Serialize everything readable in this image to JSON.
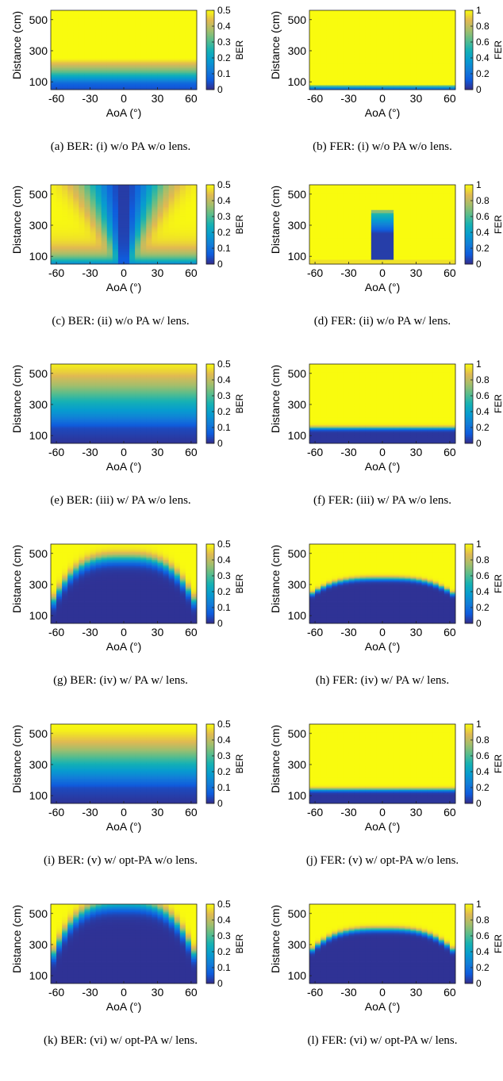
{
  "figure": {
    "xlabel": "AoA (°)",
    "ylabel": "Distance (cm)",
    "x_ticks": [
      -60,
      -30,
      0,
      30,
      60
    ],
    "y_ticks": [
      100,
      300,
      500
    ]
  },
  "chart_data": [
    {
      "id": "a",
      "type": "heatmap",
      "caption": "(a)  BER: (i) w/o PA w/o lens.",
      "metric": "BER",
      "colorbar_label": "BER",
      "clim": [
        0,
        0.5
      ],
      "colorbar_ticks": [
        0,
        0.1,
        0.2,
        0.3,
        0.4,
        0.5
      ],
      "colorbar_tick_labels": [
        "0",
        "0.1",
        "0.2",
        "0.3",
        "0.4",
        "0.5"
      ],
      "xlim": [
        -65,
        65
      ],
      "ylim": [
        50,
        560
      ],
      "x_tick_labels": [
        "-60",
        "-30",
        "0",
        "30",
        "60"
      ],
      "y_tick_labels": [
        "100",
        "300",
        "500"
      ],
      "distance_profile_cm": [
        [
          50,
          0.04
        ],
        [
          90,
          0.08
        ],
        [
          130,
          0.2
        ],
        [
          170,
          0.33
        ],
        [
          210,
          0.42
        ],
        [
          250,
          0.5
        ],
        [
          560,
          0.5
        ]
      ]
    },
    {
      "id": "b",
      "type": "heatmap",
      "caption": "(b)  FER: (i) w/o PA w/o lens.",
      "metric": "FER",
      "colorbar_label": "FER",
      "clim": [
        0,
        1
      ],
      "colorbar_ticks": [
        0,
        0.2,
        0.4,
        0.6,
        0.8,
        1
      ],
      "colorbar_tick_labels": [
        "0",
        "0.2",
        "0.4",
        "0.6",
        "0.8",
        "1"
      ],
      "xlim": [
        -65,
        65
      ],
      "ylim": [
        50,
        560
      ],
      "x_tick_labels": [
        "-60",
        "-30",
        "0",
        "30",
        "60"
      ],
      "y_tick_labels": [
        "100",
        "300",
        "500"
      ],
      "distance_profile_cm": [
        [
          50,
          0.1
        ],
        [
          70,
          0.45
        ],
        [
          85,
          1
        ],
        [
          560,
          1
        ]
      ]
    },
    {
      "id": "c",
      "type": "heatmap",
      "caption": "(c)  BER: (ii) w/o PA w/ lens.",
      "metric": "BER",
      "colorbar_label": "BER",
      "clim": [
        0,
        0.5
      ],
      "colorbar_ticks": [
        0,
        0.1,
        0.2,
        0.3,
        0.4,
        0.5
      ],
      "colorbar_tick_labels": [
        "0",
        "0.1",
        "0.2",
        "0.3",
        "0.4",
        "0.5"
      ],
      "xlim": [
        -65,
        65
      ],
      "ylim": [
        50,
        560
      ],
      "x_tick_labels": [
        "-60",
        "-30",
        "0",
        "30",
        "60"
      ],
      "y_tick_labels": [
        "100",
        "300",
        "500"
      ],
      "beam_center_deg": 0,
      "beam_width_deg": [
        4,
        34
      ],
      "value_outside": 0.5,
      "value_inside": 0.02
    },
    {
      "id": "d",
      "type": "heatmap",
      "caption": "(d)  FER: (ii) w/o PA w/ lens.",
      "metric": "FER",
      "colorbar_label": "FER",
      "clim": [
        0,
        1
      ],
      "colorbar_ticks": [
        0,
        0.2,
        0.4,
        0.6,
        0.8,
        1
      ],
      "colorbar_tick_labels": [
        "0",
        "0.2",
        "0.4",
        "0.6",
        "0.8",
        "1"
      ],
      "xlim": [
        -65,
        65
      ],
      "ylim": [
        50,
        560
      ],
      "x_tick_labels": [
        "-60",
        "-30",
        "0",
        "30",
        "60"
      ],
      "y_tick_labels": [
        "100",
        "300",
        "500"
      ],
      "beam_center_deg": 0,
      "beam_width_deg": [
        10,
        4
      ],
      "beam_top_cm": 380,
      "value_outside": 1,
      "value_inside": 0.05
    },
    {
      "id": "e",
      "type": "heatmap",
      "caption": "(e)  BER: (iii) w/ PA w/o lens.",
      "metric": "BER",
      "colorbar_label": "BER",
      "clim": [
        0,
        0.5
      ],
      "colorbar_ticks": [
        0,
        0.1,
        0.2,
        0.3,
        0.4,
        0.5
      ],
      "colorbar_tick_labels": [
        "0",
        "0.1",
        "0.2",
        "0.3",
        "0.4",
        "0.5"
      ],
      "xlim": [
        -65,
        65
      ],
      "ylim": [
        50,
        560
      ],
      "x_tick_labels": [
        "-60",
        "-30",
        "0",
        "30",
        "60"
      ],
      "y_tick_labels": [
        "100",
        "300",
        "500"
      ],
      "distance_profile_cm": [
        [
          50,
          0.01
        ],
        [
          150,
          0.04
        ],
        [
          230,
          0.15
        ],
        [
          330,
          0.26
        ],
        [
          420,
          0.37
        ],
        [
          500,
          0.45
        ],
        [
          560,
          0.49
        ]
      ]
    },
    {
      "id": "f",
      "type": "heatmap",
      "caption": "(f)  FER: (iii) w/ PA w/o lens.",
      "metric": "FER",
      "colorbar_label": "FER",
      "clim": [
        0,
        1
      ],
      "colorbar_ticks": [
        0,
        0.2,
        0.4,
        0.6,
        0.8,
        1
      ],
      "colorbar_tick_labels": [
        "0",
        "0.2",
        "0.4",
        "0.6",
        "0.8",
        "1"
      ],
      "xlim": [
        -65,
        65
      ],
      "ylim": [
        50,
        560
      ],
      "x_tick_labels": [
        "-60",
        "-30",
        "0",
        "30",
        "60"
      ],
      "y_tick_labels": [
        "100",
        "300",
        "500"
      ],
      "transition_cm": 150,
      "transition_width_cm": 25,
      "value_low": 0.03,
      "value_high": 1
    },
    {
      "id": "g",
      "type": "heatmap",
      "caption": "(g)  BER: (iv) w/ PA w/ lens.",
      "metric": "BER",
      "colorbar_label": "BER",
      "clim": [
        0,
        0.5
      ],
      "colorbar_ticks": [
        0,
        0.1,
        0.2,
        0.3,
        0.4,
        0.5
      ],
      "colorbar_tick_labels": [
        "0",
        "0.1",
        "0.2",
        "0.3",
        "0.4",
        "0.5"
      ],
      "xlim": [
        -65,
        65
      ],
      "ylim": [
        50,
        560
      ],
      "x_tick_labels": [
        "-60",
        "-30",
        "0",
        "30",
        "60"
      ],
      "y_tick_labels": [
        "100",
        "300",
        "500"
      ],
      "dome_center_cm": 470,
      "dome_edge_cm": 160,
      "dome_width_cm": 80,
      "value_low": 0.01,
      "value_high": 0.5
    },
    {
      "id": "h",
      "type": "heatmap",
      "caption": "(h)  FER: (iv) w/ PA w/ lens.",
      "metric": "FER",
      "colorbar_label": "FER",
      "clim": [
        0,
        1
      ],
      "colorbar_ticks": [
        0,
        0.2,
        0.4,
        0.6,
        0.8,
        1
      ],
      "colorbar_tick_labels": [
        "0",
        "0.2",
        "0.4",
        "0.6",
        "0.8",
        "1"
      ],
      "xlim": [
        -65,
        65
      ],
      "ylim": [
        50,
        560
      ],
      "x_tick_labels": [
        "-60",
        "-30",
        "0",
        "30",
        "60"
      ],
      "y_tick_labels": [
        "100",
        "300",
        "500"
      ],
      "dome_center_cm": 340,
      "dome_edge_cm": 230,
      "dome_width_cm": 30,
      "value_low": 0.02,
      "value_high": 1
    },
    {
      "id": "i",
      "type": "heatmap",
      "caption": "(i)  BER: (v) w/ opt-PA w/o lens.",
      "metric": "BER",
      "colorbar_label": "BER",
      "clim": [
        0,
        0.5
      ],
      "colorbar_ticks": [
        0,
        0.1,
        0.2,
        0.3,
        0.4,
        0.5
      ],
      "colorbar_tick_labels": [
        "0",
        "0.1",
        "0.2",
        "0.3",
        "0.4",
        "0.5"
      ],
      "xlim": [
        -65,
        65
      ],
      "ylim": [
        50,
        560
      ],
      "x_tick_labels": [
        "-60",
        "-30",
        "0",
        "30",
        "60"
      ],
      "y_tick_labels": [
        "100",
        "300",
        "500"
      ],
      "distance_profile_cm": [
        [
          50,
          0.01
        ],
        [
          150,
          0.04
        ],
        [
          220,
          0.13
        ],
        [
          300,
          0.24
        ],
        [
          380,
          0.35
        ],
        [
          450,
          0.44
        ],
        [
          520,
          0.49
        ],
        [
          560,
          0.5
        ]
      ]
    },
    {
      "id": "j",
      "type": "heatmap",
      "caption": "(j)  FER: (v) w/ opt-PA w/o lens.",
      "metric": "FER",
      "colorbar_label": "FER",
      "clim": [
        0,
        1
      ],
      "colorbar_ticks": [
        0,
        0.2,
        0.4,
        0.6,
        0.8,
        1
      ],
      "colorbar_tick_labels": [
        "0",
        "0.2",
        "0.4",
        "0.6",
        "0.8",
        "1"
      ],
      "xlim": [
        -65,
        65
      ],
      "ylim": [
        50,
        560
      ],
      "x_tick_labels": [
        "-60",
        "-30",
        "0",
        "30",
        "60"
      ],
      "y_tick_labels": [
        "100",
        "300",
        "500"
      ],
      "transition_cm": 140,
      "transition_width_cm": 25,
      "value_low": 0.03,
      "value_high": 1
    },
    {
      "id": "k",
      "type": "heatmap",
      "caption": "(k)  BER: (vi) w/ opt-PA w/ lens.",
      "metric": "BER",
      "colorbar_label": "BER",
      "clim": [
        0,
        0.5
      ],
      "colorbar_ticks": [
        0,
        0.1,
        0.2,
        0.3,
        0.4,
        0.5
      ],
      "colorbar_tick_labels": [
        "0",
        "0.1",
        "0.2",
        "0.3",
        "0.4",
        "0.5"
      ],
      "xlim": [
        -65,
        65
      ],
      "ylim": [
        50,
        560
      ],
      "x_tick_labels": [
        "-60",
        "-30",
        "0",
        "30",
        "60"
      ],
      "y_tick_labels": [
        "100",
        "300",
        "500"
      ],
      "dome_center_cm": 560,
      "dome_edge_cm": 200,
      "dome_width_cm": 90,
      "value_low": 0.01,
      "value_high": 0.5
    },
    {
      "id": "l",
      "type": "heatmap",
      "caption": "(l)  FER: (vi) w/ opt-PA w/ lens.",
      "metric": "FER",
      "colorbar_label": "FER",
      "clim": [
        0,
        1
      ],
      "colorbar_ticks": [
        0,
        0.2,
        0.4,
        0.6,
        0.8,
        1
      ],
      "colorbar_tick_labels": [
        "0",
        "0.2",
        "0.4",
        "0.6",
        "0.8",
        "1"
      ],
      "xlim": [
        -65,
        65
      ],
      "ylim": [
        50,
        560
      ],
      "x_tick_labels": [
        "-60",
        "-30",
        "0",
        "30",
        "60"
      ],
      "y_tick_labels": [
        "100",
        "300",
        "500"
      ],
      "dome_center_cm": 400,
      "dome_edge_cm": 250,
      "dome_width_cm": 35,
      "value_low": 0.02,
      "value_high": 1
    }
  ]
}
